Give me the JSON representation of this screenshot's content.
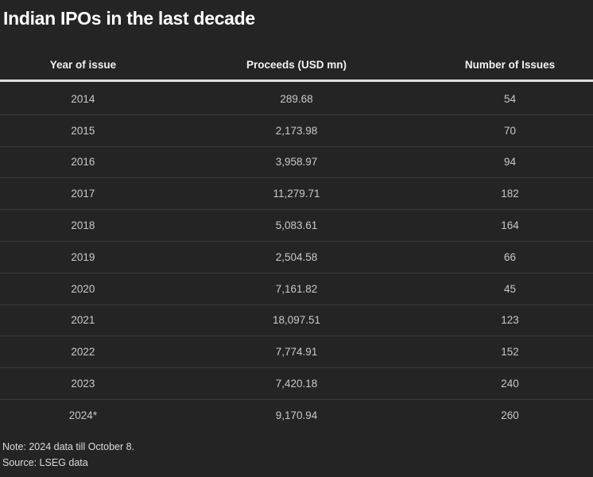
{
  "chart_data": {
    "type": "table",
    "title": "Indian IPOs in the last decade",
    "columns": [
      "Year of issue",
      "Proceeds (USD mn)",
      "Number of Issues"
    ],
    "rows": [
      [
        "2014",
        "289.68",
        "54"
      ],
      [
        "2015",
        "2,173.98",
        "70"
      ],
      [
        "2016",
        "3,958.97",
        "94"
      ],
      [
        "2017",
        "11,279.71",
        "182"
      ],
      [
        "2018",
        "5,083.61",
        "164"
      ],
      [
        "2019",
        "2,504.58",
        "66"
      ],
      [
        "2020",
        "7,161.82",
        "45"
      ],
      [
        "2021",
        "18,097.51",
        "123"
      ],
      [
        "2022",
        "7,774.91",
        "152"
      ],
      [
        "2023",
        "7,420.18",
        "240"
      ],
      [
        "2024*",
        "9,170.94",
        "260"
      ]
    ],
    "note": "Note: 2024 data till October 8.",
    "source": "Source: LSEG data"
  },
  "colors": {
    "background": "#242424",
    "title_text": "#fdfdfd",
    "header_text": "#f2f2f2",
    "cell_text": "#c9c9c9",
    "footnote_text": "#dcdcdc",
    "header_rule": "#dfdfdf",
    "row_divider": "#3a3a3a"
  }
}
